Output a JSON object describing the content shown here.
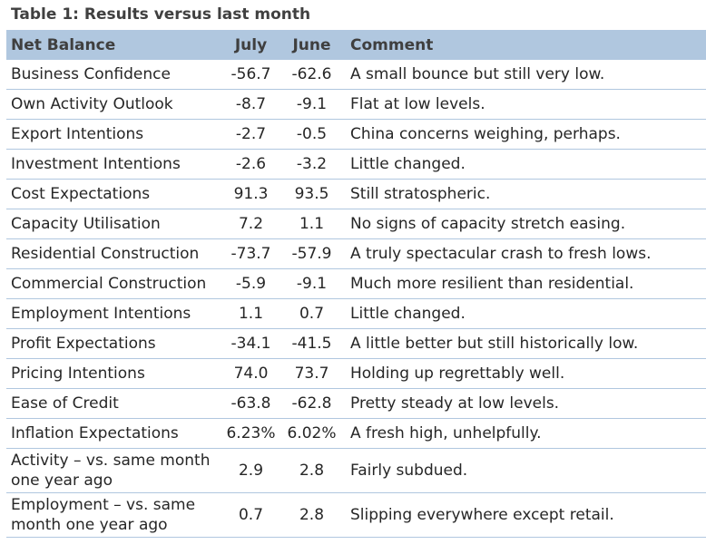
{
  "title": "Table 1: Results versus last month",
  "table": {
    "headers": [
      "Net Balance",
      "July",
      "June",
      "Comment"
    ],
    "rows": [
      {
        "label": "Business Confidence",
        "july": "-56.7",
        "june": "-62.6",
        "comment": "A small bounce but still very low."
      },
      {
        "label": "Own Activity Outlook",
        "july": "-8.7",
        "june": "-9.1",
        "comment": "Flat at low levels."
      },
      {
        "label": "Export Intentions",
        "july": "-2.7",
        "june": "-0.5",
        "comment": "China concerns weighing, perhaps."
      },
      {
        "label": "Investment Intentions",
        "july": "-2.6",
        "june": "-3.2",
        "comment": "Little changed."
      },
      {
        "label": "Cost Expectations",
        "july": "91.3",
        "june": "93.5",
        "comment": "Still stratospheric."
      },
      {
        "label": "Capacity Utilisation",
        "july": "7.2",
        "june": "1.1",
        "comment": "No signs of capacity stretch easing."
      },
      {
        "label": "Residential Construction",
        "july": "-73.7",
        "june": "-57.9",
        "comment": "A truly spectacular crash to fresh lows."
      },
      {
        "label": "Commercial Construction",
        "july": "-5.9",
        "june": "-9.1",
        "comment": "Much more resilient than residential."
      },
      {
        "label": "Employment Intentions",
        "july": "1.1",
        "june": "0.7",
        "comment": "Little changed."
      },
      {
        "label": "Profit Expectations",
        "july": "-34.1",
        "june": "-41.5",
        "comment": "A little better but still historically low."
      },
      {
        "label": "Pricing Intentions",
        "july": "74.0",
        "june": "73.7",
        "comment": "Holding up regrettably well."
      },
      {
        "label": "Ease of Credit",
        "july": "-63.8",
        "june": "-62.8",
        "comment": "Pretty steady at low levels."
      },
      {
        "label": "Inflation Expectations",
        "july": "6.23%",
        "june": "6.02%",
        "comment": "A fresh high, unhelpfully."
      },
      {
        "label": "Activity – vs. same month one year ago",
        "july": "2.9",
        "june": "2.8",
        "comment": "Fairly subdued."
      },
      {
        "label": "Employment – vs. same month one year ago",
        "july": "0.7",
        "june": "2.8",
        "comment": "Slipping everywhere except retail."
      }
    ]
  }
}
